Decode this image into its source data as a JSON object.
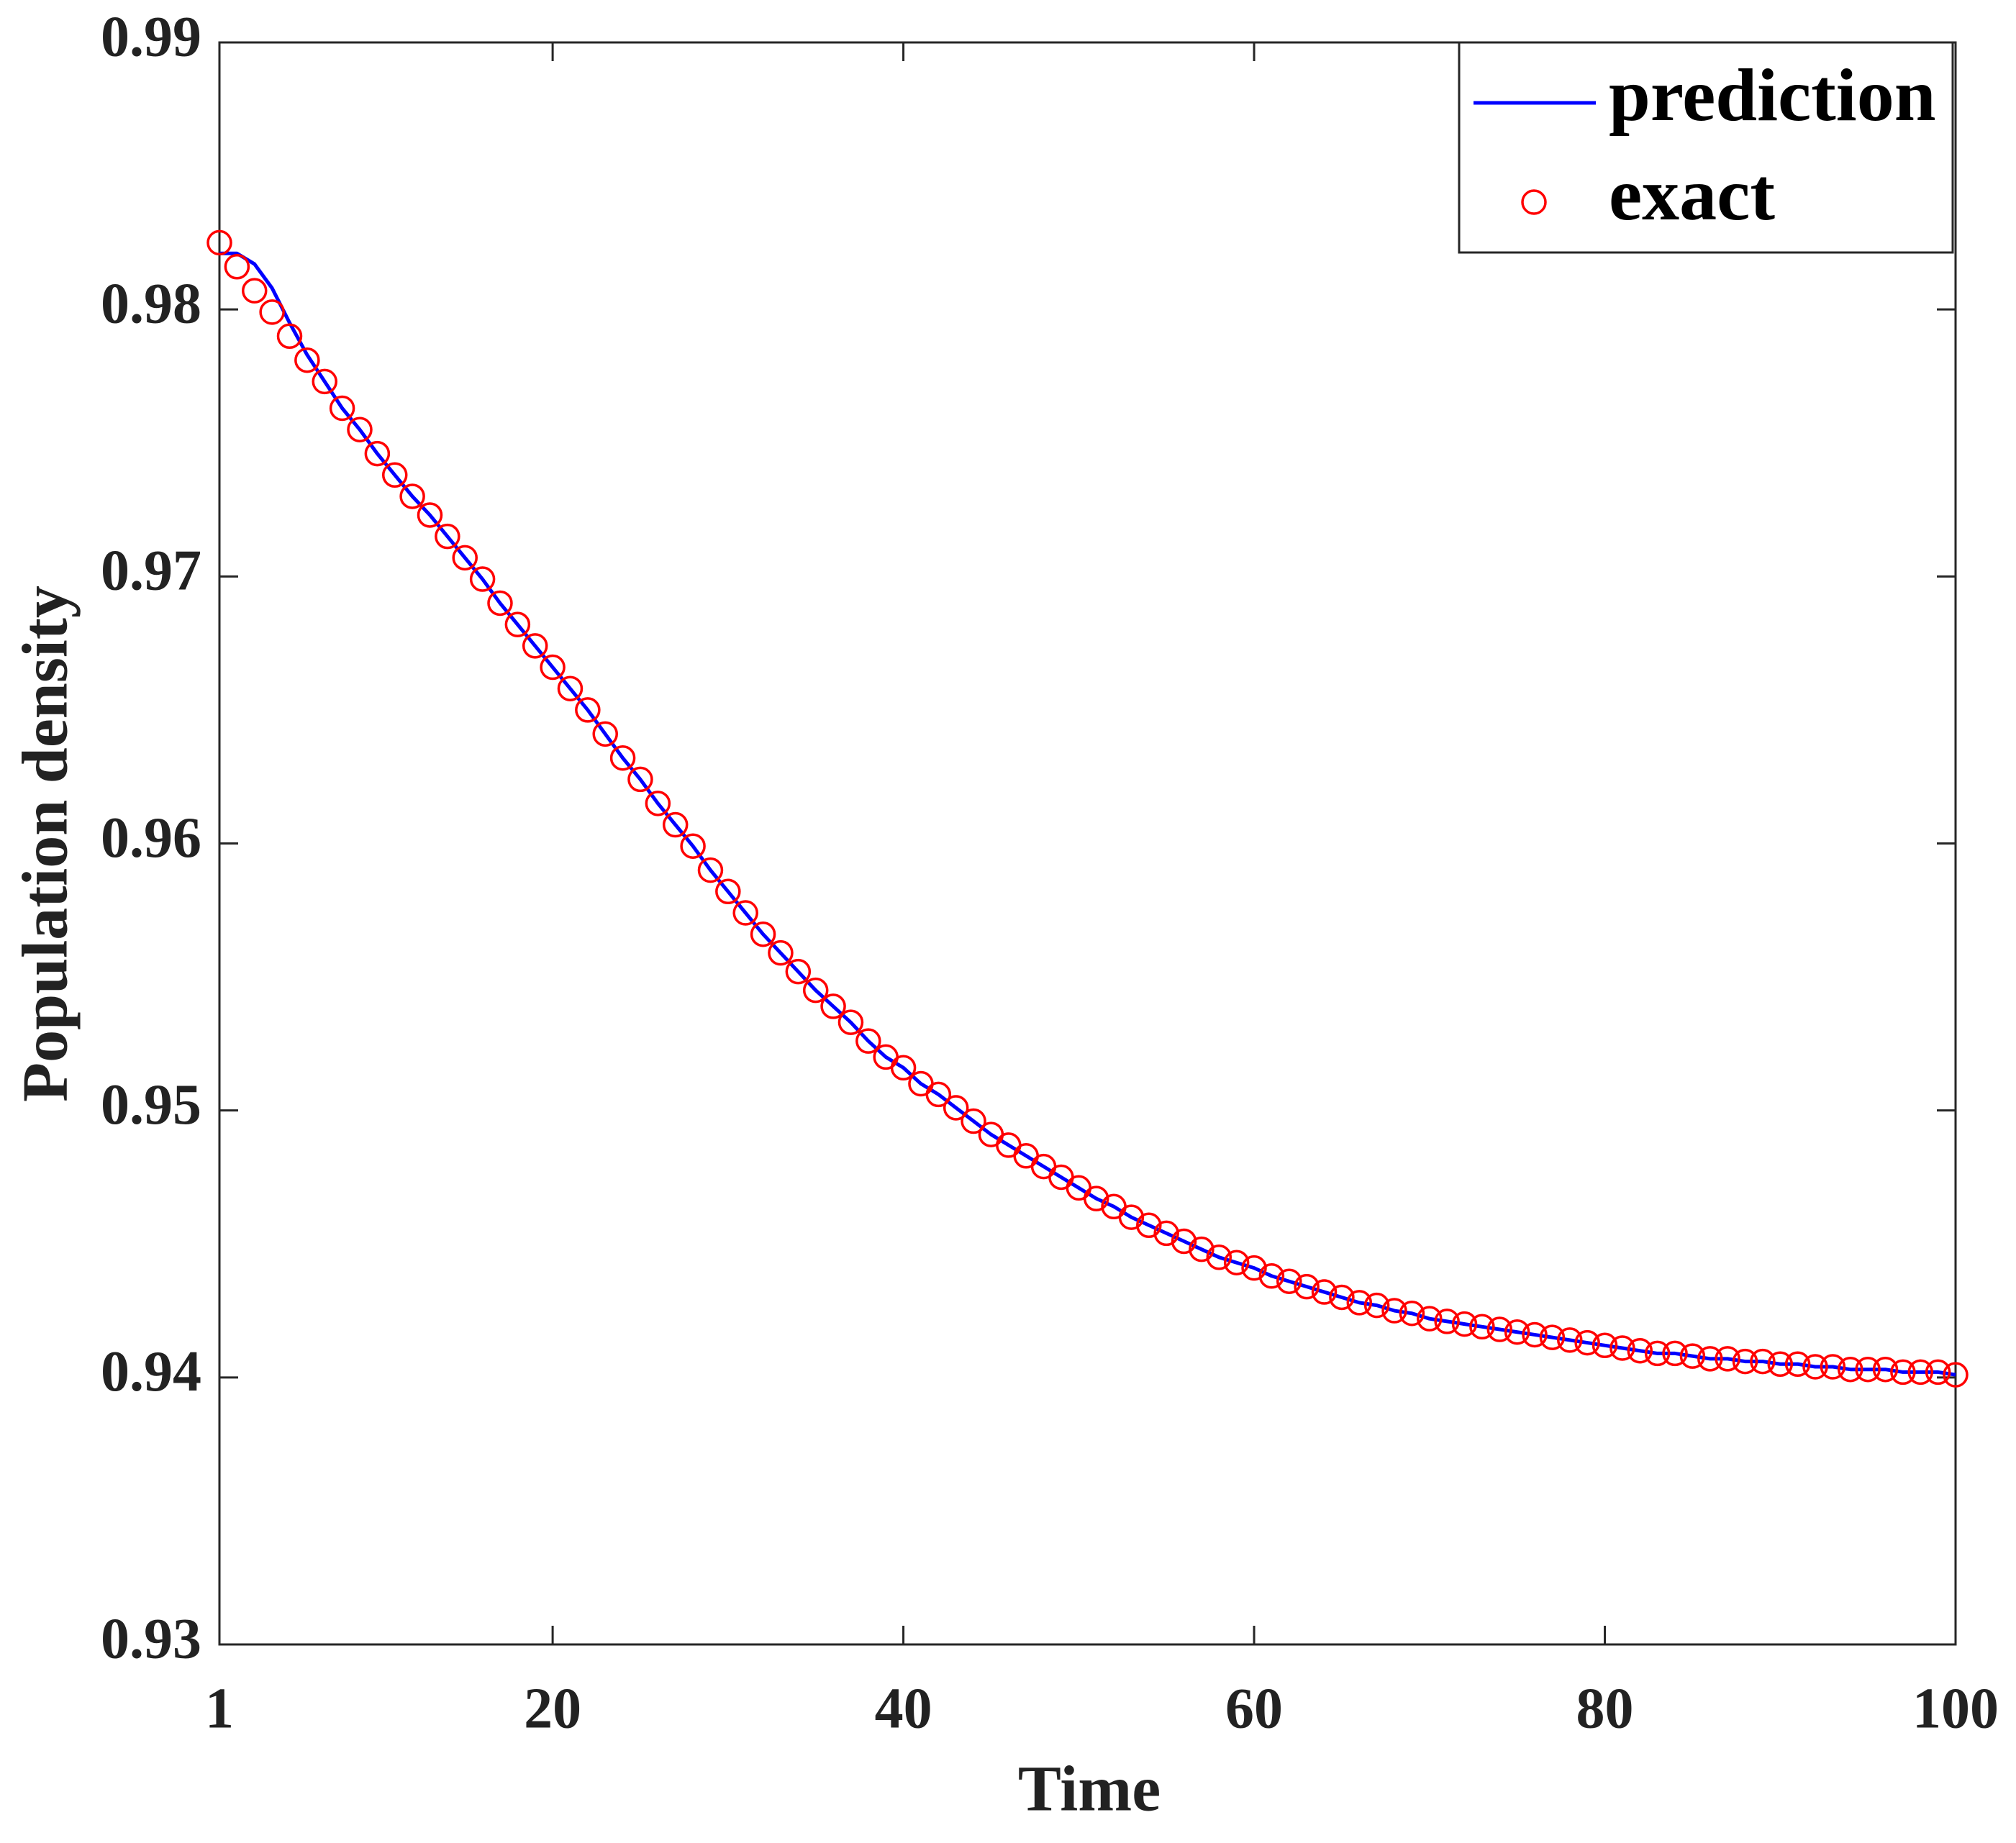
{
  "chart_data": {
    "type": "line",
    "xlabel": "Time",
    "ylabel": "Population density",
    "x": [
      1,
      2,
      3,
      4,
      5,
      6,
      7,
      8,
      9,
      10,
      11,
      12,
      13,
      14,
      15,
      16,
      17,
      18,
      19,
      20,
      21,
      22,
      23,
      24,
      25,
      26,
      27,
      28,
      29,
      30,
      31,
      32,
      33,
      34,
      35,
      36,
      37,
      38,
      39,
      40,
      41,
      42,
      43,
      44,
      45,
      46,
      47,
      48,
      49,
      50,
      51,
      52,
      53,
      54,
      55,
      56,
      57,
      58,
      59,
      60,
      61,
      62,
      63,
      64,
      65,
      66,
      67,
      68,
      69,
      70,
      71,
      72,
      73,
      74,
      75,
      76,
      77,
      78,
      79,
      80,
      81,
      82,
      83,
      84,
      85,
      86,
      87,
      88,
      89,
      90,
      91,
      92,
      93,
      94,
      95,
      96,
      97,
      98,
      99,
      100
    ],
    "series": [
      {
        "name": "prediction",
        "color": "#0000ff",
        "mode": "line",
        "values": [
          0.9821,
          0.9821,
          0.9817,
          0.9808,
          0.9795,
          0.9783,
          0.9773,
          0.9763,
          0.9755,
          0.9746,
          0.9738,
          0.973,
          0.9723,
          0.9715,
          0.9707,
          0.9699,
          0.969,
          0.9682,
          0.9674,
          0.9666,
          0.9658,
          0.965,
          0.9641,
          0.9632,
          0.9624,
          0.9615,
          0.9607,
          0.9599,
          0.959,
          0.9582,
          0.9574,
          0.9566,
          0.9559,
          0.9552,
          0.9545,
          0.9539,
          0.9533,
          0.9526,
          0.952,
          0.9516,
          0.951,
          0.9506,
          0.9501,
          0.9496,
          0.9491,
          0.9487,
          0.9483,
          0.9479,
          0.9475,
          0.9471,
          0.9467,
          0.9464,
          0.946,
          0.9457,
          0.9454,
          0.9451,
          0.9448,
          0.9445,
          0.9443,
          0.9441,
          0.9438,
          0.9436,
          0.9434,
          0.9432,
          0.943,
          0.9428,
          0.9427,
          0.9425,
          0.9424,
          0.9422,
          0.9421,
          0.942,
          0.9419,
          0.9418,
          0.9417,
          0.9416,
          0.9415,
          0.9414,
          0.9413,
          0.9412,
          0.9411,
          0.941,
          0.9409,
          0.9409,
          0.9408,
          0.9407,
          0.9407,
          0.9406,
          0.9406,
          0.9405,
          0.9405,
          0.9404,
          0.9404,
          0.9403,
          0.9403,
          0.9403,
          0.9402,
          0.9402,
          0.9402,
          0.9401
        ]
      },
      {
        "name": "exact",
        "color": "#ff0000",
        "mode": "marker",
        "values": [
          0.9825,
          0.9816,
          0.9807,
          0.9799,
          0.979,
          0.9781,
          0.9773,
          0.9763,
          0.9755,
          0.9746,
          0.9738,
          0.973,
          0.9723,
          0.9715,
          0.9707,
          0.9699,
          0.969,
          0.9682,
          0.9674,
          0.9666,
          0.9658,
          0.965,
          0.9641,
          0.9632,
          0.9624,
          0.9615,
          0.9607,
          0.9599,
          0.959,
          0.9582,
          0.9574,
          0.9566,
          0.9559,
          0.9552,
          0.9545,
          0.9539,
          0.9533,
          0.9526,
          0.952,
          0.9516,
          0.951,
          0.9506,
          0.9501,
          0.9496,
          0.9491,
          0.9487,
          0.9483,
          0.9479,
          0.9475,
          0.9471,
          0.9467,
          0.9464,
          0.946,
          0.9457,
          0.9454,
          0.9451,
          0.9448,
          0.9445,
          0.9443,
          0.9441,
          0.9438,
          0.9436,
          0.9434,
          0.9432,
          0.943,
          0.9428,
          0.9427,
          0.9425,
          0.9424,
          0.9422,
          0.9421,
          0.942,
          0.9419,
          0.9418,
          0.9417,
          0.9416,
          0.9415,
          0.9414,
          0.9413,
          0.9412,
          0.9411,
          0.941,
          0.9409,
          0.9409,
          0.9408,
          0.9407,
          0.9407,
          0.9406,
          0.9406,
          0.9405,
          0.9405,
          0.9404,
          0.9404,
          0.9403,
          0.9403,
          0.9403,
          0.9402,
          0.9402,
          0.9402,
          0.9401
        ]
      }
    ],
    "xlim": [
      1,
      100
    ],
    "xticks": [
      1,
      20,
      40,
      60,
      80,
      100
    ],
    "ylim": [
      0.93,
      0.99
    ],
    "yticks": [
      0.93,
      0.94,
      0.95,
      0.96,
      0.97,
      0.98,
      0.99
    ],
    "grid": false,
    "legend": "upper right"
  }
}
